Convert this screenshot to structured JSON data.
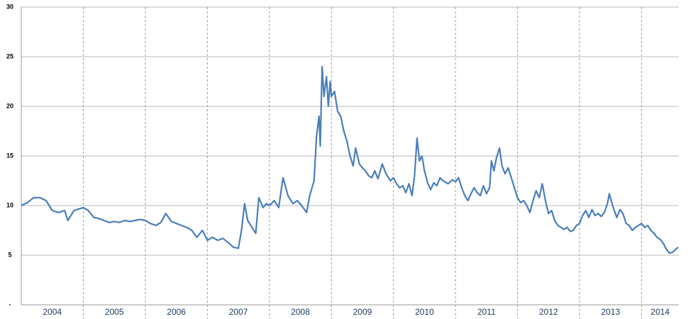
{
  "chart_data": {
    "type": "line",
    "color": "#4a7ebb",
    "x": [
      2004.0,
      2004.1,
      2004.2,
      2004.3,
      2004.4,
      2004.5,
      2004.6,
      2004.7,
      2004.75,
      2004.85,
      2004.95,
      2005.0,
      2005.08,
      2005.17,
      2005.25,
      2005.33,
      2005.42,
      2005.5,
      2005.58,
      2005.67,
      2005.75,
      2005.83,
      2005.92,
      2006.0,
      2006.08,
      2006.17,
      2006.25,
      2006.33,
      2006.42,
      2006.5,
      2006.58,
      2006.67,
      2006.75,
      2006.83,
      2006.92,
      2007.0,
      2007.08,
      2007.17,
      2007.25,
      2007.33,
      2007.42,
      2007.5,
      2007.55,
      2007.6,
      2007.65,
      2007.72,
      2007.78,
      2007.83,
      2007.9,
      2007.95,
      2008.0,
      2008.08,
      2008.15,
      2008.22,
      2008.3,
      2008.38,
      2008.45,
      2008.52,
      2008.6,
      2008.65,
      2008.72,
      2008.76,
      2008.8,
      2008.82,
      2008.85,
      2008.88,
      2008.92,
      2008.95,
      2008.98,
      2009.0,
      2009.05,
      2009.1,
      2009.15,
      2009.2,
      2009.25,
      2009.3,
      2009.35,
      2009.39,
      2009.45,
      2009.5,
      2009.55,
      2009.6,
      2009.65,
      2009.7,
      2009.75,
      2009.82,
      2009.88,
      2009.95,
      2010.0,
      2010.05,
      2010.1,
      2010.15,
      2010.2,
      2010.25,
      2010.3,
      2010.34,
      2010.38,
      2010.42,
      2010.46,
      2010.5,
      2010.55,
      2010.6,
      2010.65,
      2010.7,
      2010.75,
      2010.8,
      2010.88,
      2010.95,
      2011.0,
      2011.05,
      2011.1,
      2011.15,
      2011.2,
      2011.25,
      2011.3,
      2011.35,
      2011.4,
      2011.45,
      2011.5,
      2011.55,
      2011.58,
      2011.62,
      2011.66,
      2011.71,
      2011.75,
      2011.8,
      2011.85,
      2011.9,
      2011.95,
      2012.0,
      2012.05,
      2012.1,
      2012.15,
      2012.2,
      2012.25,
      2012.3,
      2012.35,
      2012.4,
      2012.45,
      2012.5,
      2012.55,
      2012.6,
      2012.65,
      2012.7,
      2012.75,
      2012.8,
      2012.85,
      2012.9,
      2012.95,
      2013.0,
      2013.05,
      2013.1,
      2013.15,
      2013.2,
      2013.25,
      2013.3,
      2013.35,
      2013.4,
      2013.45,
      2013.48,
      2013.52,
      2013.56,
      2013.6,
      2013.65,
      2013.7,
      2013.75,
      2013.8,
      2013.85,
      2013.9,
      2013.95,
      2014.0,
      2014.05,
      2014.1,
      2014.15,
      2014.2,
      2014.25,
      2014.3,
      2014.35,
      2014.4,
      2014.45,
      2014.5,
      2014.55,
      2014.59
    ],
    "values": [
      10.0,
      10.3,
      10.8,
      10.8,
      10.5,
      9.5,
      9.3,
      9.5,
      8.5,
      9.5,
      9.7,
      9.8,
      9.5,
      8.8,
      8.7,
      8.5,
      8.3,
      8.4,
      8.3,
      8.5,
      8.4,
      8.5,
      8.6,
      8.5,
      8.2,
      8.0,
      8.3,
      9.2,
      8.4,
      8.2,
      8.0,
      7.8,
      7.5,
      6.8,
      7.5,
      6.5,
      6.8,
      6.5,
      6.7,
      6.3,
      5.8,
      5.7,
      7.5,
      10.2,
      8.5,
      7.8,
      7.2,
      10.8,
      9.8,
      10.2,
      10.0,
      10.5,
      9.8,
      12.8,
      11.0,
      10.2,
      10.5,
      10.0,
      9.3,
      11.0,
      12.5,
      17.0,
      19.0,
      16.0,
      24.0,
      21.0,
      23.0,
      20.0,
      22.5,
      21.0,
      21.5,
      19.5,
      19.0,
      17.5,
      16.5,
      15.0,
      14.0,
      15.8,
      14.2,
      13.8,
      13.5,
      13.0,
      12.8,
      13.5,
      12.7,
      14.2,
      13.2,
      12.5,
      12.8,
      12.2,
      11.8,
      12.0,
      11.3,
      12.2,
      11.0,
      13.0,
      16.8,
      14.5,
      15.0,
      13.5,
      12.3,
      11.6,
      12.3,
      12.0,
      12.8,
      12.5,
      12.2,
      12.6,
      12.4,
      12.8,
      11.8,
      11.0,
      10.5,
      11.2,
      11.8,
      11.3,
      11.0,
      12.0,
      11.2,
      11.8,
      14.5,
      13.5,
      14.8,
      15.8,
      14.0,
      13.2,
      13.8,
      12.8,
      11.8,
      10.8,
      10.3,
      10.5,
      10.0,
      9.3,
      10.5,
      11.5,
      10.8,
      12.2,
      10.5,
      9.2,
      9.5,
      8.5,
      8.0,
      7.8,
      7.6,
      7.8,
      7.4,
      7.5,
      8.0,
      8.2,
      9.0,
      9.5,
      8.8,
      9.6,
      9.0,
      9.2,
      8.9,
      9.3,
      10.2,
      11.2,
      10.3,
      9.5,
      8.8,
      9.6,
      9.2,
      8.2,
      8.0,
      7.5,
      7.8,
      8.0,
      8.2,
      7.8,
      8.0,
      7.5,
      7.2,
      6.8,
      6.6,
      6.2,
      5.6,
      5.2,
      5.3,
      5.6,
      5.8
    ],
    "xlim": [
      2004,
      2014.6
    ],
    "xticks": [
      {
        "value": 2004.5,
        "label": "2004"
      },
      {
        "value": 2005.5,
        "label": "2005"
      },
      {
        "value": 2006.5,
        "label": "2006"
      },
      {
        "value": 2007.5,
        "label": "2007"
      },
      {
        "value": 2008.5,
        "label": "2008"
      },
      {
        "value": 2009.5,
        "label": "2009"
      },
      {
        "value": 2010.5,
        "label": "2010"
      },
      {
        "value": 2011.5,
        "label": "2011"
      },
      {
        "value": 2012.5,
        "label": "2012"
      },
      {
        "value": 2013.5,
        "label": "2013"
      },
      {
        "value": 2014.3,
        "label": "2014"
      }
    ],
    "xgrid": [
      2005,
      2006,
      2007,
      2008,
      2009,
      2010,
      2011,
      2012,
      2013,
      2014
    ],
    "ylim": [
      0,
      30
    ],
    "yticks": [
      {
        "value": 0,
        "label": "-"
      },
      5,
      10,
      15,
      20,
      25,
      30
    ],
    "grid": true
  }
}
